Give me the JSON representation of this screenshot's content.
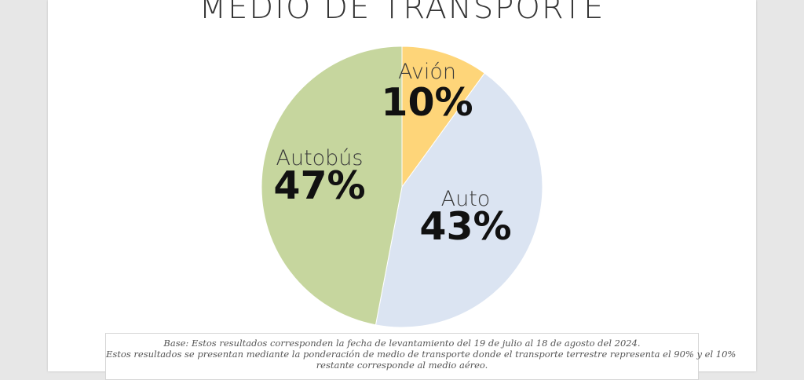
{
  "title": "MEDIO DE TRANSPORTE",
  "chart_data": {
    "type": "pie",
    "title": "MEDIO DE TRANSPORTE",
    "slices": [
      {
        "label": "Avión",
        "value": 10,
        "display": "10%",
        "color": "#fed579"
      },
      {
        "label": "Auto",
        "value": 43,
        "display": "43%",
        "color": "#dbe4f2"
      },
      {
        "label": "Autobús",
        "value": 47,
        "display": "47%",
        "color": "#c6d69e"
      }
    ]
  },
  "footnote": {
    "line1": "Base: Estos resultados corresponden la fecha de levantamiento del 19 de julio al 18 de agosto del 2024.",
    "line2": "Estos resultados se presentan mediante la ponderación de medio de transporte donde el transporte terrestre representa el 90% y el 10%",
    "line3": "restante corresponde al medio aéreo."
  }
}
